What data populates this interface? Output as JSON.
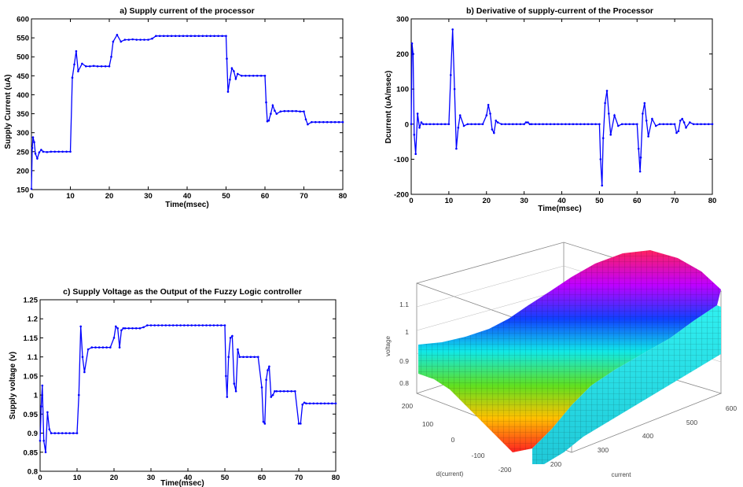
{
  "chart_data": [
    {
      "type": "line",
      "title": "a) Supply current of the processor",
      "xlabel": "Time(msec)",
      "ylabel": "Supply Current (uA)",
      "xlim": [
        0,
        80
      ],
      "ylim": [
        150,
        600
      ],
      "xticks": [
        0,
        10,
        20,
        30,
        40,
        50,
        60,
        70,
        80
      ],
      "yticks": [
        150,
        200,
        250,
        300,
        350,
        400,
        450,
        500,
        550,
        600
      ],
      "color": "#0000ff",
      "series": [
        {
          "x": [
            0,
            0.2,
            0.4,
            0.7,
            1,
            1.5,
            2,
            2.5,
            3,
            4,
            5,
            6,
            7,
            8,
            9,
            10,
            10.5,
            11,
            11.5,
            12,
            13,
            14,
            15,
            16,
            17,
            18,
            19,
            20,
            20.5,
            21,
            22,
            23,
            24,
            25,
            26,
            27,
            28,
            29,
            30,
            31,
            32,
            33,
            34,
            35,
            36,
            37,
            38,
            39,
            40,
            41,
            42,
            43,
            44,
            45,
            46,
            47,
            48,
            49,
            50,
            50.2,
            50.5,
            51,
            51.5,
            52,
            52.5,
            53,
            54,
            55,
            56,
            57,
            58,
            59,
            60,
            60.3,
            60.6,
            61,
            61.5,
            62,
            62.5,
            63,
            64,
            65,
            66,
            67,
            68,
            69,
            70,
            70.5,
            71,
            72,
            73,
            74,
            75,
            76,
            77,
            78,
            79,
            80
          ],
          "y": [
            152,
            260,
            288,
            275,
            245,
            232,
            248,
            255,
            250,
            249,
            250,
            250,
            250,
            250,
            250,
            250,
            445,
            480,
            515,
            462,
            482,
            475,
            475,
            476,
            475,
            475,
            475,
            475,
            500,
            540,
            558,
            540,
            545,
            545,
            546,
            545,
            545,
            545,
            545,
            548,
            555,
            555,
            555,
            555,
            555,
            555,
            555,
            555,
            555,
            555,
            555,
            555,
            555,
            555,
            555,
            555,
            555,
            555,
            555,
            495,
            408,
            440,
            470,
            462,
            442,
            455,
            450,
            450,
            450,
            450,
            450,
            450,
            450,
            380,
            330,
            332,
            350,
            372,
            358,
            350,
            356,
            357,
            357,
            357,
            357,
            356,
            356,
            335,
            322,
            328,
            328,
            328,
            328,
            328,
            328,
            328,
            328,
            328
          ]
        }
      ]
    },
    {
      "type": "line",
      "title": "b) Derivative of supply-current of the Processor",
      "xlabel": "Time(msec)",
      "ylabel": "Dcurrent (uA/msec)",
      "xlim": [
        0,
        80
      ],
      "ylim": [
        -200,
        300
      ],
      "xticks": [
        0,
        10,
        20,
        30,
        40,
        50,
        60,
        70,
        80
      ],
      "yticks": [
        -200,
        -100,
        0,
        100,
        200,
        300
      ],
      "color": "#0000ff",
      "series": [
        {
          "x": [
            0,
            0.2,
            0.5,
            0.8,
            1.2,
            1.7,
            2.2,
            2.7,
            3.2,
            4,
            5,
            6,
            7,
            8,
            9,
            10,
            10.5,
            11,
            11.5,
            12,
            12.5,
            13,
            14,
            15,
            16,
            17,
            18,
            19,
            20,
            20.5,
            21,
            21.5,
            22,
            22.5,
            23,
            24,
            25,
            26,
            27,
            28,
            29,
            30,
            30.5,
            31,
            31.5,
            32,
            33,
            34,
            35,
            36,
            37,
            38,
            39,
            40,
            41,
            42,
            43,
            44,
            45,
            46,
            47,
            48,
            49,
            50,
            50.3,
            50.7,
            51,
            51.5,
            52,
            52.5,
            53,
            54,
            55,
            56,
            57,
            58,
            59,
            60,
            60.4,
            60.8,
            61,
            61.5,
            62,
            62.5,
            63,
            64,
            65,
            66,
            67,
            68,
            69,
            70,
            70.5,
            71,
            71.5,
            72,
            72.5,
            73,
            74,
            75,
            76,
            77,
            78,
            79,
            80
          ],
          "y": [
            0,
            230,
            200,
            -30,
            -85,
            30,
            -10,
            5,
            0,
            0,
            0,
            0,
            0,
            0,
            0,
            0,
            140,
            270,
            100,
            -70,
            -10,
            25,
            -5,
            0,
            0,
            0,
            0,
            0,
            25,
            55,
            30,
            -15,
            -25,
            10,
            5,
            0,
            0,
            0,
            0,
            0,
            0,
            0,
            5,
            5,
            0,
            0,
            0,
            0,
            0,
            0,
            0,
            0,
            0,
            0,
            0,
            0,
            0,
            0,
            0,
            0,
            0,
            0,
            0,
            0,
            -100,
            -175,
            -40,
            60,
            95,
            30,
            -30,
            25,
            -5,
            0,
            0,
            0,
            0,
            0,
            -70,
            -135,
            -95,
            30,
            60,
            10,
            -35,
            15,
            -5,
            0,
            0,
            0,
            0,
            0,
            -25,
            -20,
            10,
            15,
            5,
            -10,
            5,
            0,
            0,
            0,
            0,
            0,
            0
          ]
        }
      ]
    },
    {
      "type": "line",
      "title": "c) Supply Voltage as the Output of the Fuzzy Logic controller",
      "xlabel": "Time(msec)",
      "ylabel": "Supply voltage (v)",
      "xlim": [
        0,
        80
      ],
      "ylim": [
        0.8,
        1.25
      ],
      "xticks": [
        0,
        10,
        20,
        30,
        40,
        50,
        60,
        70,
        80
      ],
      "yticks": [
        0.8,
        0.85,
        0.9,
        0.95,
        1,
        1.05,
        1.1,
        1.15,
        1.2,
        1.25
      ],
      "yticklabels": [
        "0.8",
        "0.85",
        "0.9",
        "0.95",
        "1",
        "1.05",
        "1.1",
        "1.15",
        "1.2",
        "1.25"
      ],
      "color": "#0000ff",
      "series": [
        {
          "x": [
            0,
            0.3,
            0.6,
            1,
            1.5,
            2,
            2.5,
            3,
            4,
            5,
            6,
            7,
            8,
            9,
            10,
            10.5,
            11,
            11.5,
            12,
            13,
            14,
            15,
            16,
            17,
            18,
            19,
            20,
            20.5,
            21,
            21.5,
            22,
            22.5,
            23,
            24,
            25,
            26,
            27,
            28,
            29,
            30,
            31,
            32,
            33,
            34,
            35,
            36,
            37,
            38,
            39,
            40,
            41,
            42,
            43,
            44,
            45,
            46,
            47,
            48,
            49,
            50,
            50.3,
            50.6,
            51,
            51.5,
            52,
            52.5,
            53,
            53.5,
            54,
            55,
            56,
            57,
            58,
            59,
            60,
            60.4,
            60.8,
            61.2,
            61.6,
            62,
            62.5,
            63,
            63.5,
            64,
            65,
            66,
            67,
            68,
            69,
            70,
            70.5,
            71,
            71.5,
            72,
            73,
            74,
            75,
            76,
            77,
            78,
            79,
            80
          ],
          "y": [
            0.88,
            0.97,
            1.025,
            0.88,
            0.85,
            0.955,
            0.91,
            0.9,
            0.9,
            0.9,
            0.9,
            0.9,
            0.9,
            0.9,
            0.9,
            1.0,
            1.18,
            1.1,
            1.06,
            1.12,
            1.125,
            1.125,
            1.125,
            1.125,
            1.125,
            1.125,
            1.15,
            1.18,
            1.175,
            1.125,
            1.17,
            1.175,
            1.175,
            1.175,
            1.175,
            1.175,
            1.175,
            1.178,
            1.183,
            1.183,
            1.183,
            1.183,
            1.183,
            1.183,
            1.183,
            1.183,
            1.183,
            1.183,
            1.183,
            1.183,
            1.183,
            1.183,
            1.183,
            1.183,
            1.183,
            1.183,
            1.183,
            1.183,
            1.183,
            1.183,
            1.05,
            0.995,
            1.1,
            1.15,
            1.155,
            1.03,
            1.01,
            1.12,
            1.1,
            1.1,
            1.1,
            1.1,
            1.1,
            1.1,
            1.02,
            0.93,
            0.925,
            1.04,
            1.065,
            1.075,
            0.995,
            1.0,
            1.01,
            1.01,
            1.01,
            1.01,
            1.01,
            1.01,
            1.01,
            0.925,
            0.925,
            0.975,
            0.98,
            0.978,
            0.978,
            0.978,
            0.978,
            0.978,
            0.978,
            0.978,
            0.978,
            0.978
          ]
        }
      ]
    },
    {
      "type": "surface3d",
      "xlabel": "current",
      "ylabel": "d(current)",
      "zlabel": "voltage",
      "xticks": [
        200,
        300,
        400,
        500,
        600
      ],
      "yticks": [
        -200,
        -100,
        0,
        100,
        200
      ],
      "zticks": [
        0.8,
        0.9,
        1,
        1.1
      ],
      "zticklabels": [
        "0.8",
        "0.9",
        "1",
        "1.1"
      ],
      "colormap": "hsv",
      "grid": true
    }
  ]
}
